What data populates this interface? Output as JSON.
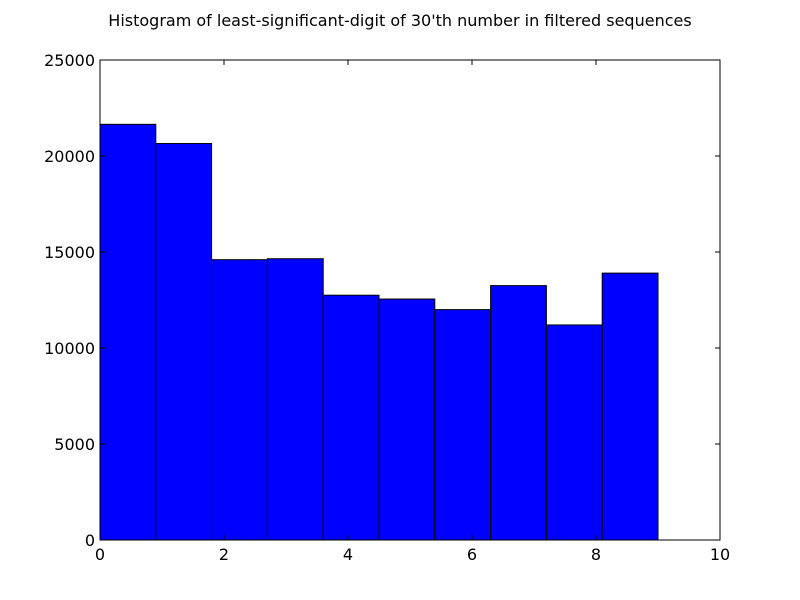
{
  "chart_data": {
    "type": "bar",
    "title": "Histogram of least-significant-digit of 30'th number in filtered sequences",
    "xlabel": "",
    "ylabel": "",
    "xlim": [
      0,
      10
    ],
    "ylim": [
      0,
      25000
    ],
    "xticks": [
      0,
      2,
      4,
      6,
      8,
      10
    ],
    "yticks": [
      0,
      5000,
      10000,
      15000,
      20000,
      25000
    ],
    "bins": [
      {
        "x0": 0.0,
        "x1": 0.9,
        "value": 21650
      },
      {
        "x0": 0.9,
        "x1": 1.8,
        "value": 20650
      },
      {
        "x0": 1.8,
        "x1": 2.7,
        "value": 14600
      },
      {
        "x0": 2.7,
        "x1": 3.6,
        "value": 14650
      },
      {
        "x0": 3.6,
        "x1": 4.5,
        "value": 12750
      },
      {
        "x0": 4.5,
        "x1": 5.4,
        "value": 12550
      },
      {
        "x0": 5.4,
        "x1": 6.3,
        "value": 12000
      },
      {
        "x0": 6.3,
        "x1": 7.2,
        "value": 13250
      },
      {
        "x0": 7.2,
        "x1": 8.1,
        "value": 11200
      },
      {
        "x0": 8.1,
        "x1": 9.0,
        "value": 13900
      }
    ],
    "bar_color": "#0000ff",
    "edge_color": "#000000",
    "grid": false,
    "legend": "none"
  }
}
